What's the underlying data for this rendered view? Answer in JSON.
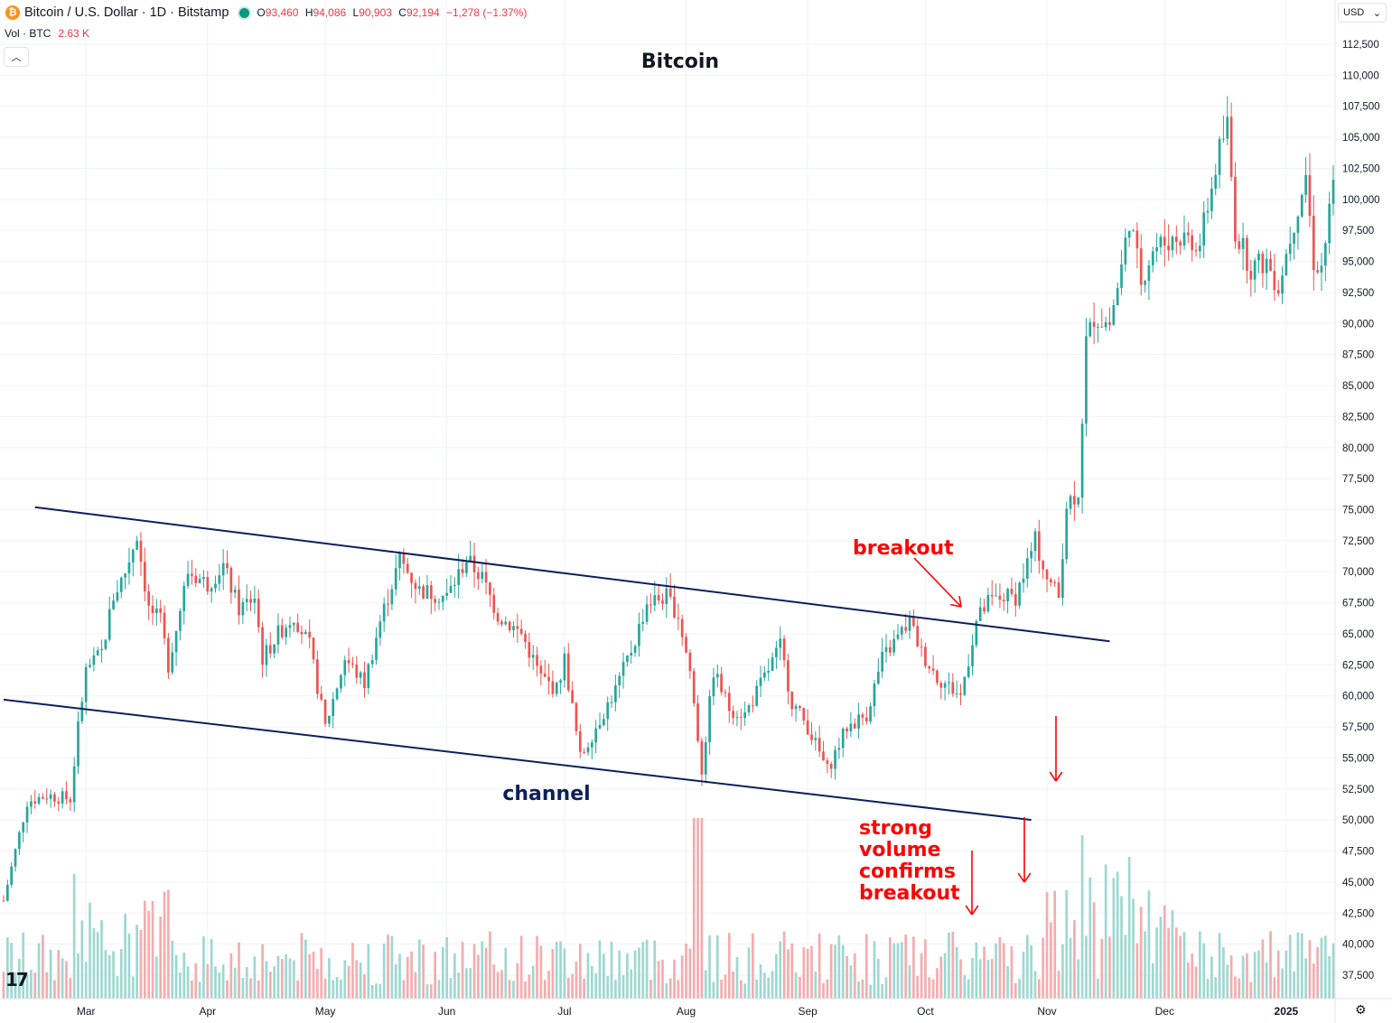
{
  "header": {
    "symbol_title": "Bitcoin / U.S. Dollar · 1D · Bitstamp",
    "open_label": "O",
    "open_value": "93,460",
    "high_label": "H",
    "high_value": "94,086",
    "low_label": "L",
    "low_value": "90,903",
    "close_label": "C",
    "close_value": "92,194",
    "change": "−1,278 (−1.37%)",
    "volume_label": "Vol · BTC",
    "volume_value": "2.63 K",
    "collapse_icon": "chevron-up-icon",
    "currency": "USD",
    "currency_icon": "chevron-down-icon",
    "logo_icon": "bitcoin-logo-icon",
    "settings_icon": "gear-icon",
    "brand_icon": "tradingview-logo-icon"
  },
  "colors": {
    "up": "#26a69a",
    "down": "#ef5350",
    "volume_up": "#9ed8d0",
    "volume_down": "#f5acae",
    "channel": "#0d1f5c",
    "annotation": "#ff0000",
    "grid": "#f0f3fa"
  },
  "chart_data": {
    "type": "candlestick",
    "title": "Bitcoin",
    "ylim": [
      35000,
      114000
    ],
    "y_ticks": [
      112500,
      110000,
      107500,
      105000,
      102500,
      100000,
      97500,
      95000,
      92500,
      90000,
      87500,
      85000,
      82500,
      80000,
      77500,
      75000,
      72500,
      70000,
      67500,
      65000,
      62500,
      60000,
      57500,
      55000,
      52500,
      50000,
      47500,
      45000,
      42500,
      40000,
      37500
    ],
    "y_tick_labels": [
      "112,500",
      "110,000",
      "107,500",
      "105,000",
      "102,500",
      "100,000",
      "97,500",
      "95,000",
      "92,500",
      "90,000",
      "87,500",
      "85,000",
      "82,500",
      "80,000",
      "77,500",
      "75,000",
      "72,500",
      "70,000",
      "67,500",
      "65,000",
      "62,500",
      "60,000",
      "57,500",
      "55,000",
      "52,500",
      "50,000",
      "47,500",
      "45,000",
      "42,500",
      "40,000",
      "37,500"
    ],
    "x_range": [
      "2024-02-09",
      "2025-01-13"
    ],
    "x_ticks": [
      {
        "date": "2024-03-01",
        "label": "Mar"
      },
      {
        "date": "2024-04-01",
        "label": "Apr"
      },
      {
        "date": "2024-05-01",
        "label": "May"
      },
      {
        "date": "2024-06-01",
        "label": "Jun"
      },
      {
        "date": "2024-07-01",
        "label": "Jul"
      },
      {
        "date": "2024-08-01",
        "label": "Aug"
      },
      {
        "date": "2024-09-01",
        "label": "Sep"
      },
      {
        "date": "2024-10-01",
        "label": "Oct"
      },
      {
        "date": "2024-11-01",
        "label": "Nov"
      },
      {
        "date": "2024-12-01",
        "label": "Dec"
      },
      {
        "date": "2025-01-01",
        "label": "2025"
      }
    ],
    "close_path": [
      [
        "2024-02-09",
        43500
      ],
      [
        "2024-02-15",
        51500
      ],
      [
        "2024-02-20",
        52000
      ],
      [
        "2024-02-26",
        51700
      ],
      [
        "2024-02-28",
        57500
      ],
      [
        "2024-03-01",
        62000
      ],
      [
        "2024-03-05",
        63500
      ],
      [
        "2024-03-08",
        68000
      ],
      [
        "2024-03-11",
        70000
      ],
      [
        "2024-03-14",
        73000
      ],
      [
        "2024-03-17",
        67000
      ],
      [
        "2024-03-20",
        66000
      ],
      [
        "2024-03-22",
        62500
      ],
      [
        "2024-03-27",
        70000
      ],
      [
        "2024-04-01",
        69000
      ],
      [
        "2024-04-05",
        70500
      ],
      [
        "2024-04-09",
        67000
      ],
      [
        "2024-04-13",
        68000
      ],
      [
        "2024-04-15",
        63000
      ],
      [
        "2024-04-19",
        65000
      ],
      [
        "2024-04-23",
        66500
      ],
      [
        "2024-04-27",
        64000
      ],
      [
        "2024-05-01",
        57500
      ],
      [
        "2024-05-06",
        63000
      ],
      [
        "2024-05-11",
        61000
      ],
      [
        "2024-05-15",
        66000
      ],
      [
        "2024-05-20",
        71000
      ],
      [
        "2024-05-25",
        68500
      ],
      [
        "2024-06-01",
        68000
      ],
      [
        "2024-06-06",
        71000
      ],
      [
        "2024-06-10",
        69500
      ],
      [
        "2024-06-14",
        66500
      ],
      [
        "2024-06-20",
        65000
      ],
      [
        "2024-06-25",
        61500
      ],
      [
        "2024-06-29",
        60500
      ],
      [
        "2024-07-01",
        63000
      ],
      [
        "2024-07-05",
        55000
      ],
      [
        "2024-07-09",
        57500
      ],
      [
        "2024-07-14",
        60500
      ],
      [
        "2024-07-19",
        64500
      ],
      [
        "2024-07-22",
        67500
      ],
      [
        "2024-07-27",
        68000
      ],
      [
        "2024-07-30",
        66500
      ],
      [
        "2024-08-02",
        62000
      ],
      [
        "2024-08-05",
        54000
      ],
      [
        "2024-08-08",
        62000
      ],
      [
        "2024-08-12",
        59000
      ],
      [
        "2024-08-16",
        58500
      ],
      [
        "2024-08-21",
        61500
      ],
      [
        "2024-08-25",
        64000
      ],
      [
        "2024-08-28",
        59500
      ],
      [
        "2024-09-01",
        57500
      ],
      [
        "2024-09-06",
        54000
      ],
      [
        "2024-09-11",
        57500
      ],
      [
        "2024-09-16",
        58500
      ],
      [
        "2024-09-20",
        63000
      ],
      [
        "2024-09-27",
        66000
      ],
      [
        "2024-09-30",
        63500
      ],
      [
        "2024-10-04",
        61500
      ],
      [
        "2024-10-10",
        60000
      ],
      [
        "2024-10-14",
        66000
      ],
      [
        "2024-10-17",
        67500
      ],
      [
        "2024-10-21",
        68000
      ],
      [
        "2024-10-24",
        68000
      ],
      [
        "2024-10-29",
        72500
      ],
      [
        "2024-11-01",
        69500
      ],
      [
        "2024-11-04",
        68000
      ],
      [
        "2024-11-06",
        75500
      ],
      [
        "2024-11-09",
        76500
      ],
      [
        "2024-11-11",
        88500
      ],
      [
        "2024-11-13",
        90500
      ],
      [
        "2024-11-17",
        90000
      ],
      [
        "2024-11-20",
        94500
      ],
      [
        "2024-11-22",
        98500
      ],
      [
        "2024-11-25",
        93500
      ],
      [
        "2024-11-28",
        96000
      ],
      [
        "2024-12-01",
        96500
      ],
      [
        "2024-12-05",
        97000
      ],
      [
        "2024-12-10",
        96500
      ],
      [
        "2024-12-15",
        104000
      ],
      [
        "2024-12-17",
        106000
      ],
      [
        "2024-12-19",
        97500
      ],
      [
        "2024-12-23",
        94500
      ],
      [
        "2024-12-27",
        95000
      ],
      [
        "2024-12-30",
        93000
      ],
      [
        "2025-01-02",
        97000
      ],
      [
        "2025-01-06",
        102000
      ],
      [
        "2025-01-08",
        95000
      ],
      [
        "2025-01-10",
        94500
      ],
      [
        "2025-01-13",
        101000
      ]
    ],
    "channel_upper": [
      [
        "2024-02-17",
        75200
      ],
      [
        "2024-11-17",
        64400
      ]
    ],
    "channel_lower": [
      [
        "2024-02-09",
        59700
      ],
      [
        "2024-10-28",
        50000
      ]
    ],
    "annotations": {
      "channel_label": "channel",
      "breakout_label": "breakout",
      "volume_label_lines": [
        "strong",
        "volume",
        "confirms",
        "breakout"
      ]
    }
  }
}
